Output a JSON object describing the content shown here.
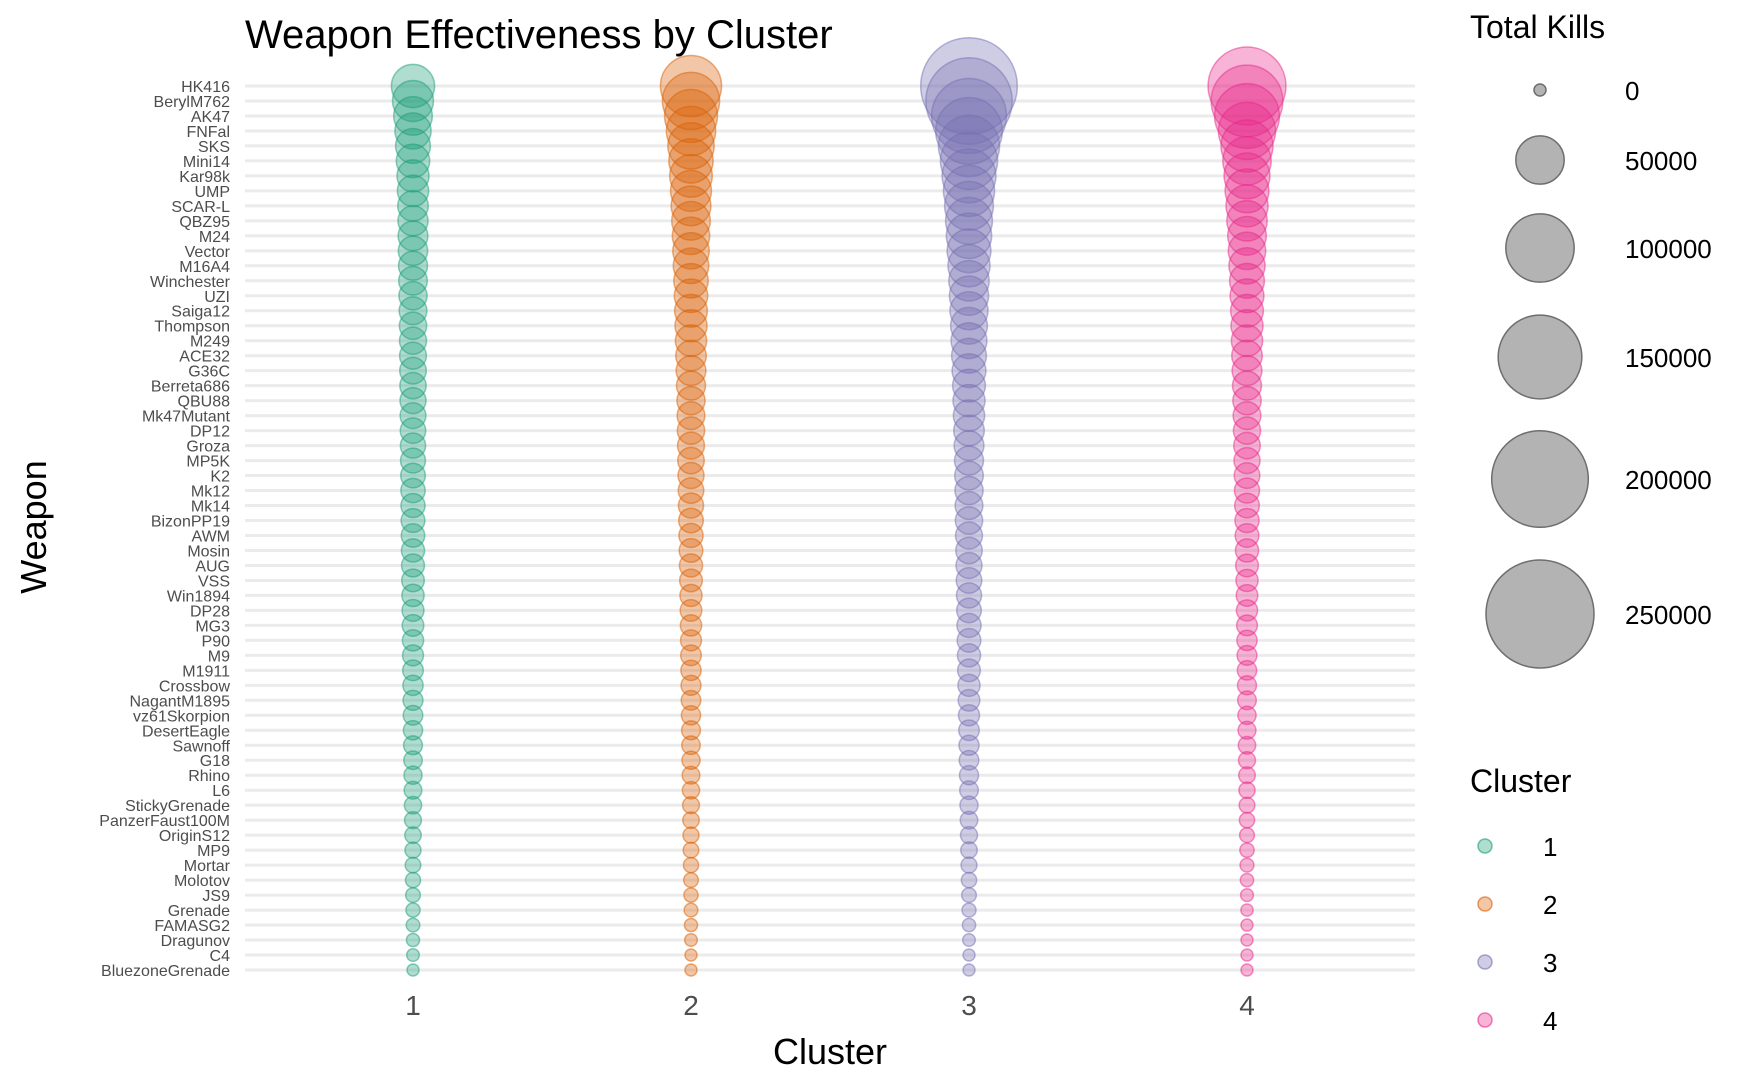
{
  "chart_data": {
    "type": "scatter",
    "title": "Weapon Effectiveness by Cluster",
    "xlabel": "Cluster",
    "ylabel": "Weapon",
    "x_categories": [
      "1",
      "2",
      "3",
      "4"
    ],
    "weapons": [
      "HK416",
      "BerylM762",
      "AK47",
      "FNFal",
      "SKS",
      "Mini14",
      "Kar98k",
      "UMP",
      "SCAR-L",
      "QBZ95",
      "M24",
      "Vector",
      "M16A4",
      "Winchester",
      "UZI",
      "Saiga12",
      "Thompson",
      "M249",
      "ACE32",
      "G36C",
      "Berreta686",
      "QBU88",
      "Mk47Mutant",
      "DP12",
      "Groza",
      "MP5K",
      "K2",
      "Mk12",
      "Mk14",
      "BizonPP19",
      "AWM",
      "Mosin",
      "AUG",
      "VSS",
      "Win1894",
      "DP28",
      "MG3",
      "P90",
      "M9",
      "M1911",
      "Crossbow",
      "NagantM1895",
      "vz61Skorpion",
      "DesertEagle",
      "Sawnoff",
      "G18",
      "Rhino",
      "L6",
      "StickyGrenade",
      "PanzerFaust100M",
      "OriginS12",
      "MP9",
      "Mortar",
      "Molotov",
      "JS9",
      "Grenade",
      "FAMASG2",
      "Dragunov",
      "C4",
      "BluezoneGrenade"
    ],
    "series": [
      {
        "name": "1",
        "color": "#1b9e77",
        "total_kills": [
          40000,
          36000,
          32000,
          28000,
          26000,
          24000,
          22000,
          21000,
          20000,
          19500,
          19000,
          18500,
          18000,
          17500,
          17000,
          16500,
          16000,
          15700,
          15400,
          15100,
          14800,
          14500,
          14200,
          13900,
          13600,
          13300,
          13000,
          12700,
          12400,
          12100,
          11800,
          11500,
          11200,
          10900,
          10600,
          10300,
          10000,
          9700,
          9400,
          9100,
          8800,
          8500,
          8200,
          7900,
          7600,
          7300,
          7000,
          6700,
          6400,
          6100,
          5800,
          5500,
          5200,
          4900,
          4600,
          4300,
          4000,
          3700,
          3400,
          3100
        ]
      },
      {
        "name": "2",
        "color": "#d95f02",
        "total_kills": [
          80000,
          70000,
          60000,
          52000,
          46000,
          42000,
          39000,
          36000,
          34000,
          32000,
          30000,
          28500,
          27000,
          25500,
          24000,
          23000,
          22000,
          21000,
          20000,
          19000,
          18000,
          17000,
          16500,
          16000,
          15500,
          15000,
          14500,
          14000,
          13500,
          13000,
          12500,
          12000,
          11500,
          11000,
          10500,
          10000,
          9700,
          9400,
          9100,
          8800,
          8500,
          8200,
          7900,
          7600,
          7300,
          7000,
          6700,
          6400,
          6100,
          5800,
          5500,
          5200,
          4900,
          4600,
          4300,
          4000,
          3700,
          3400,
          3100,
          2800
        ]
      },
      {
        "name": "3",
        "color": "#7570b3",
        "total_kills": [
          200000,
          160000,
          120000,
          95000,
          80000,
          70000,
          62000,
          56000,
          51000,
          47000,
          44000,
          41000,
          38000,
          35000,
          33000,
          31000,
          29000,
          27500,
          26000,
          24500,
          23000,
          22000,
          21000,
          20000,
          19000,
          18000,
          17500,
          17000,
          16500,
          16000,
          15500,
          15000,
          14500,
          14000,
          13500,
          13000,
          12500,
          12000,
          11500,
          11000,
          10500,
          10000,
          9500,
          9000,
          8600,
          8200,
          7800,
          7400,
          7000,
          6600,
          6200,
          5800,
          5400,
          5000,
          4600,
          4200,
          3800,
          3400,
          3000,
          2600
        ]
      },
      {
        "name": "4",
        "color": "#e7298a",
        "total_kills": [
          130000,
          110000,
          90000,
          70000,
          58000,
          50000,
          45000,
          41000,
          38000,
          35000,
          32000,
          30000,
          28000,
          26000,
          24500,
          23000,
          22000,
          21000,
          20000,
          19000,
          18000,
          17200,
          16500,
          15800,
          15100,
          14500,
          14000,
          13500,
          13000,
          12500,
          12000,
          11500,
          11000,
          10500,
          10000,
          9600,
          9200,
          8800,
          8400,
          8000,
          7700,
          7400,
          7100,
          6800,
          6500,
          6200,
          5900,
          5600,
          5300,
          5000,
          4700,
          4400,
          4100,
          3800,
          3500,
          3200,
          2900,
          2600,
          2300,
          2000
        ]
      }
    ],
    "size_legend": {
      "title": "Total Kills",
      "values": [
        0,
        50000,
        100000,
        150000,
        200000,
        250000
      ],
      "labels": [
        "0",
        "50000",
        "100000",
        "150000",
        "200000",
        "250000"
      ],
      "color": "#999999"
    },
    "color_legend": {
      "title": "Cluster",
      "labels": [
        "1",
        "2",
        "3",
        "4"
      ],
      "colors": [
        "#1b9e77",
        "#d95f02",
        "#7570b3",
        "#e7298a"
      ]
    },
    "grid": true,
    "point_alpha": 0.35,
    "legend_position": "right"
  }
}
